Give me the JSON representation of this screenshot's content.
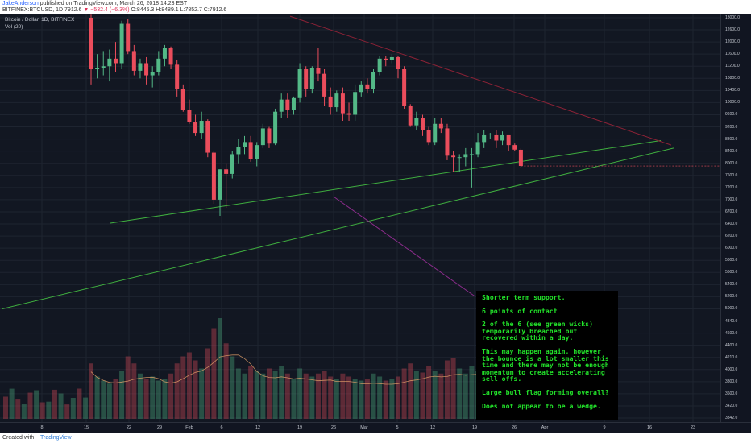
{
  "header": {
    "author": "JakeAnderson",
    "published": "published on TradingView.com, March 26, 2018 14:23 EST",
    "symbol": "BITFINEX:BTCUSD, 1D",
    "price": "7912.6",
    "change": "−532.4 (−6.3%)",
    "ohlc": "O:8445.3 H:8489.1 L:7852.7 C:7912.6"
  },
  "legend": {
    "series_title": "Bitcoin / Dollar, 1D, BITFINEX",
    "volume_title": "Vol (20)"
  },
  "annotation": {
    "lines": [
      "Shorter term support.",
      "6 points of contact",
      "2 of the 6 (see green wicks) temporarily breached but recovered within a day.",
      "This may happen again, however the bounce is a lot smaller this time and there may not be enough momentum to create accelerating sell offs.",
      "Large bull flag forming overall?",
      "Does not appear to be a wedge."
    ],
    "text_color": "#22e02a",
    "background": "#000000"
  },
  "footer": {
    "created": "Created with",
    "brand": "TradingView"
  },
  "chart_data": {
    "type": "candlestick",
    "y_axis_labels": [
      "13000.0",
      "12600.0",
      "12000.0",
      "11600.0",
      "11200.0",
      "10800.0",
      "10400.0",
      "10000.0",
      "9600.0",
      "9200.0",
      "8800.0",
      "8400.0",
      "8000.0",
      "7600.0",
      "7200.0",
      "7000.0",
      "6700.0",
      "6400.0",
      "6200.0",
      "6000.0",
      "5800.0",
      "5600.0",
      "5400.0",
      "5200.0",
      "5000.0",
      "4840.0",
      "4600.0",
      "4400.0",
      "4210.0",
      "4000.0",
      "3800.0",
      "3600.0",
      "3420.0",
      "3342.0"
    ],
    "x_axis_labels": [
      "8",
      "15",
      "22",
      "29",
      "Feb",
      "6",
      "12",
      "19",
      "26",
      "Mar",
      "5",
      "12",
      "19",
      "26",
      "Apr",
      "9",
      "16",
      "23"
    ],
    "ylim": [
      3342,
      13000
    ],
    "up_color": "#53b987",
    "down_color": "#eb4d5c",
    "candles": [
      {
        "o": 13000,
        "h": 13100,
        "l": 10600,
        "c": 11100
      },
      {
        "o": 11100,
        "h": 11600,
        "l": 10800,
        "c": 11150
      },
      {
        "o": 11150,
        "h": 11700,
        "l": 10900,
        "c": 11200
      },
      {
        "o": 11200,
        "h": 11750,
        "l": 10700,
        "c": 11450
      },
      {
        "o": 11450,
        "h": 12000,
        "l": 11000,
        "c": 11300
      },
      {
        "o": 11300,
        "h": 12900,
        "l": 11100,
        "c": 12800
      },
      {
        "o": 12800,
        "h": 12950,
        "l": 11600,
        "c": 11700
      },
      {
        "o": 11700,
        "h": 11900,
        "l": 10900,
        "c": 11050
      },
      {
        "o": 11050,
        "h": 11450,
        "l": 10800,
        "c": 11300
      },
      {
        "o": 11300,
        "h": 11500,
        "l": 10600,
        "c": 10900
      },
      {
        "o": 10900,
        "h": 11200,
        "l": 10500,
        "c": 11000
      },
      {
        "o": 11000,
        "h": 11700,
        "l": 10900,
        "c": 11450
      },
      {
        "o": 11450,
        "h": 11900,
        "l": 11200,
        "c": 11800
      },
      {
        "o": 11800,
        "h": 11850,
        "l": 11100,
        "c": 11250
      },
      {
        "o": 11250,
        "h": 11400,
        "l": 10200,
        "c": 10450
      },
      {
        "o": 10450,
        "h": 10600,
        "l": 9700,
        "c": 9750
      },
      {
        "o": 9750,
        "h": 10100,
        "l": 9300,
        "c": 9350
      },
      {
        "o": 9350,
        "h": 9600,
        "l": 8900,
        "c": 9000
      },
      {
        "o": 9000,
        "h": 9700,
        "l": 8800,
        "c": 9400
      },
      {
        "o": 9400,
        "h": 9450,
        "l": 8200,
        "c": 8350
      },
      {
        "o": 8350,
        "h": 8400,
        "l": 6900,
        "c": 7000
      },
      {
        "o": 7000,
        "h": 7800,
        "l": 6600,
        "c": 7800
      },
      {
        "o": 7800,
        "h": 8000,
        "l": 6800,
        "c": 7650
      },
      {
        "o": 7650,
        "h": 8400,
        "l": 7500,
        "c": 8300
      },
      {
        "o": 8300,
        "h": 8800,
        "l": 8000,
        "c": 8550
      },
      {
        "o": 8550,
        "h": 8900,
        "l": 8300,
        "c": 8700
      },
      {
        "o": 8700,
        "h": 8900,
        "l": 8050,
        "c": 8150
      },
      {
        "o": 8150,
        "h": 8700,
        "l": 7900,
        "c": 8600
      },
      {
        "o": 8600,
        "h": 9300,
        "l": 8500,
        "c": 9150
      },
      {
        "o": 9150,
        "h": 9200,
        "l": 8500,
        "c": 8650
      },
      {
        "o": 8650,
        "h": 9800,
        "l": 8600,
        "c": 9700
      },
      {
        "o": 9700,
        "h": 10300,
        "l": 9500,
        "c": 10100
      },
      {
        "o": 10100,
        "h": 10300,
        "l": 9500,
        "c": 9750
      },
      {
        "o": 9750,
        "h": 10200,
        "l": 9600,
        "c": 10150
      },
      {
        "o": 10150,
        "h": 11300,
        "l": 10000,
        "c": 11100
      },
      {
        "o": 11100,
        "h": 11200,
        "l": 10200,
        "c": 10450
      },
      {
        "o": 10450,
        "h": 11200,
        "l": 10300,
        "c": 11150
      },
      {
        "o": 11150,
        "h": 11800,
        "l": 10700,
        "c": 10950
      },
      {
        "o": 10950,
        "h": 11100,
        "l": 9900,
        "c": 10200
      },
      {
        "o": 10200,
        "h": 10500,
        "l": 9600,
        "c": 9850
      },
      {
        "o": 9850,
        "h": 10400,
        "l": 9700,
        "c": 10300
      },
      {
        "o": 10300,
        "h": 10500,
        "l": 9400,
        "c": 9650
      },
      {
        "o": 9650,
        "h": 10000,
        "l": 9400,
        "c": 9600
      },
      {
        "o": 9600,
        "h": 10600,
        "l": 9400,
        "c": 10350
      },
      {
        "o": 10350,
        "h": 10700,
        "l": 10200,
        "c": 10600
      },
      {
        "o": 10600,
        "h": 10800,
        "l": 10300,
        "c": 10450
      },
      {
        "o": 10450,
        "h": 11100,
        "l": 10300,
        "c": 11000
      },
      {
        "o": 11000,
        "h": 11550,
        "l": 10900,
        "c": 11450
      },
      {
        "o": 11450,
        "h": 11550,
        "l": 11200,
        "c": 11400
      },
      {
        "o": 11400,
        "h": 11600,
        "l": 11300,
        "c": 11500
      },
      {
        "o": 11500,
        "h": 11550,
        "l": 10800,
        "c": 11100
      },
      {
        "o": 11100,
        "h": 11200,
        "l": 9800,
        "c": 9900
      },
      {
        "o": 9900,
        "h": 9950,
        "l": 9200,
        "c": 9250
      },
      {
        "o": 9250,
        "h": 9700,
        "l": 9100,
        "c": 9500
      },
      {
        "o": 9500,
        "h": 9600,
        "l": 8900,
        "c": 9100
      },
      {
        "o": 9100,
        "h": 9200,
        "l": 8600,
        "c": 8700
      },
      {
        "o": 8700,
        "h": 9500,
        "l": 8600,
        "c": 9300
      },
      {
        "o": 9300,
        "h": 9500,
        "l": 9000,
        "c": 9150
      },
      {
        "o": 9150,
        "h": 9300,
        "l": 8100,
        "c": 8250
      },
      {
        "o": 8250,
        "h": 8400,
        "l": 7700,
        "c": 8200
      },
      {
        "o": 8200,
        "h": 8300,
        "l": 7700,
        "c": 8200
      },
      {
        "o": 8200,
        "h": 8500,
        "l": 7900,
        "c": 8300
      },
      {
        "o": 8300,
        "h": 8500,
        "l": 7200,
        "c": 8300
      },
      {
        "o": 8300,
        "h": 9000,
        "l": 8200,
        "c": 8700
      },
      {
        "o": 8700,
        "h": 9100,
        "l": 8500,
        "c": 8950
      },
      {
        "o": 8950,
        "h": 9000,
        "l": 8800,
        "c": 8950
      },
      {
        "o": 8950,
        "h": 9100,
        "l": 8500,
        "c": 8750
      },
      {
        "o": 8750,
        "h": 9050,
        "l": 8600,
        "c": 8950
      },
      {
        "o": 8950,
        "h": 8950,
        "l": 8400,
        "c": 8600
      },
      {
        "o": 8600,
        "h": 8650,
        "l": 8400,
        "c": 8450
      },
      {
        "o": 8445.3,
        "h": 8489.1,
        "l": 7852.7,
        "c": 7912.6
      }
    ],
    "volume": [
      0.55,
      0.42,
      0.38,
      0.35,
      0.4,
      0.48,
      0.62,
      0.55,
      0.45,
      0.4,
      0.42,
      0.38,
      0.4,
      0.45,
      0.55,
      0.62,
      0.66,
      0.58,
      0.5,
      0.7,
      0.9,
      1.0,
      0.75,
      0.62,
      0.5,
      0.45,
      0.52,
      0.48,
      0.45,
      0.5,
      0.48,
      0.52,
      0.45,
      0.4,
      0.5,
      0.45,
      0.42,
      0.45,
      0.48,
      0.42,
      0.4,
      0.45,
      0.42,
      0.4,
      0.38,
      0.4,
      0.45,
      0.42,
      0.38,
      0.4,
      0.42,
      0.5,
      0.55,
      0.48,
      0.46,
      0.52,
      0.48,
      0.45,
      0.58,
      0.6,
      0.5,
      0.45,
      0.52,
      0.48,
      0.42,
      0.4,
      0.44,
      0.4,
      0.45,
      0.4,
      0.48
    ],
    "trendlines": [
      {
        "name": "short-term-support",
        "color": "#3fae3f",
        "from": {
          "i": 18,
          "v": 6420
        },
        "to": {
          "i": 115,
          "v": 8750
        }
      },
      {
        "name": "long-term-support",
        "color": "#3fae3f",
        "from": {
          "i": 0,
          "v": 5000
        },
        "to": {
          "i": 120,
          "v": 8500
        }
      },
      {
        "name": "resistance",
        "color": "#8c2236",
        "from": {
          "i": 47,
          "v": 13050
        },
        "to": {
          "i": 118,
          "v": 8600
        }
      },
      {
        "name": "flagpole",
        "color": "#8c2c8c",
        "from": {
          "i": 60,
          "v": 7050
        },
        "to": {
          "i": 84,
          "v": 5200
        }
      }
    ]
  }
}
